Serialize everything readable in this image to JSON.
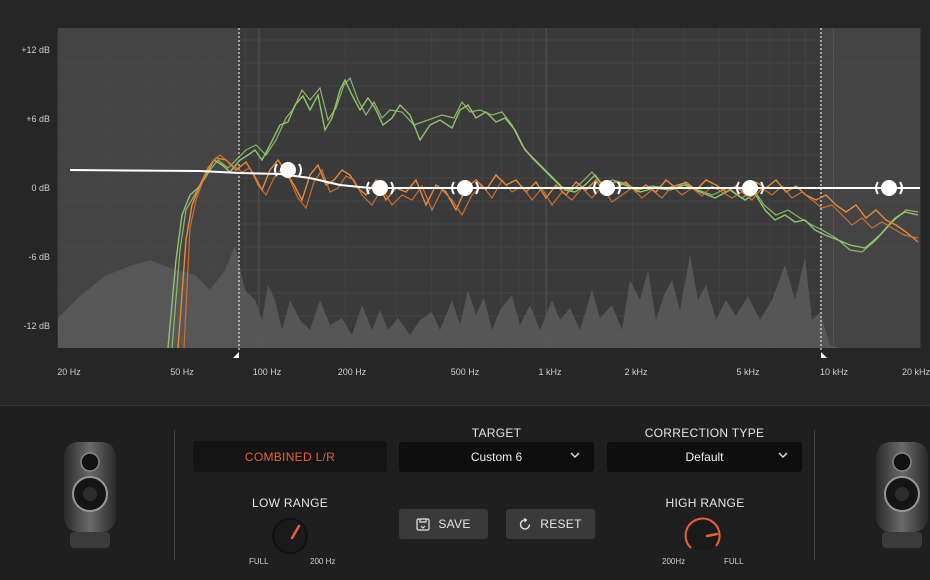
{
  "graph": {
    "y_labels": [
      "+12 dB",
      "+6 dB",
      "0 dB",
      "-6 dB",
      "-12 dB"
    ],
    "x_labels": [
      "20 Hz",
      "50 Hz",
      "100 Hz",
      "200 Hz",
      "500 Hz",
      "1 kHz",
      "2 kHz",
      "5 kHz",
      "10 kHz",
      "20 kHz"
    ],
    "colors": {
      "target_curve": "#ffffff",
      "measured_left": "#e88a3a",
      "measured_right": "#8ec56a",
      "correction_band_handles": "#ffffff",
      "range_markers": "#ffffff"
    }
  },
  "controls": {
    "combined_label": "COMBINED L/R",
    "target": {
      "label": "TARGET",
      "value": "Custom 6"
    },
    "correction_type": {
      "label": "CORRECTION TYPE",
      "value": "Default"
    },
    "low_range": {
      "label": "LOW RANGE",
      "min": "FULL",
      "max": "200 Hz"
    },
    "high_range": {
      "label": "HIGH RANGE",
      "min": "200Hz",
      "max": "FULL"
    },
    "save_label": "SAVE",
    "reset_label": "RESET"
  },
  "icons": {
    "save": "save-icon",
    "reset": "reset-icon",
    "chevron": "chevron-down-icon",
    "speaker": "speaker-icon"
  }
}
